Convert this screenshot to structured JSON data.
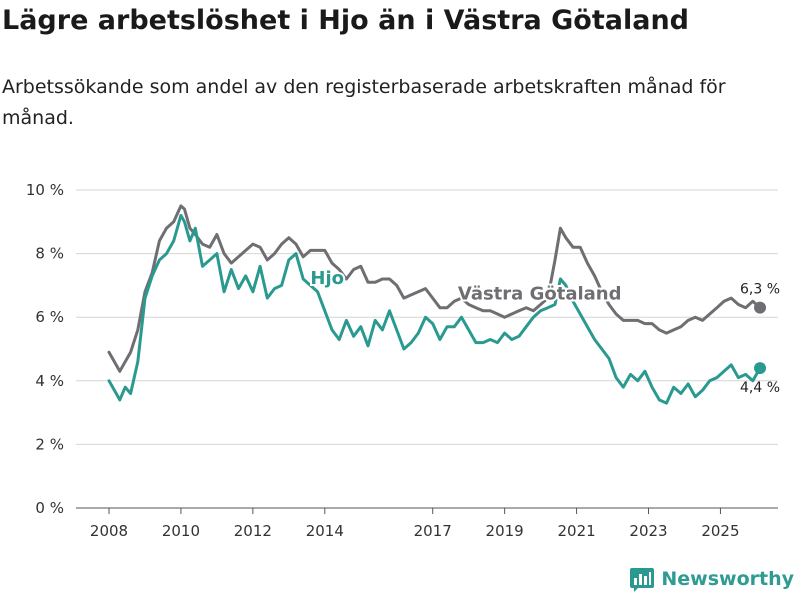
{
  "header": {
    "title": "Lägre arbetslöshet i Hjo än i Västra Götaland",
    "subtitle": "Arbetssökande som andel av den registerbaserade arbetskraften månad för månad."
  },
  "brand": {
    "name": "Newsworthy",
    "color": "#2a9a90"
  },
  "chart_data": {
    "type": "line",
    "title": "Lägre arbetslöshet i Hjo än i Västra Götaland",
    "xlabel": "",
    "ylabel": "",
    "xlim": [
      2008,
      2026.6
    ],
    "ylim": [
      0,
      10
    ],
    "grid": true,
    "x_ticks": [
      2008,
      2010,
      2012,
      2014,
      2017,
      2019,
      2021,
      2023,
      2025
    ],
    "x_tick_labels": [
      "2008",
      "2010",
      "2012",
      "2014",
      "2017",
      "2019",
      "2021",
      "2023",
      "2025"
    ],
    "y_ticks": [
      0,
      2,
      4,
      6,
      8,
      10
    ],
    "y_tick_labels": [
      "0 %",
      "2 %",
      "4 %",
      "6 %",
      "8 %",
      "10 %"
    ],
    "series": [
      {
        "name": "Västra Götaland",
        "label": "Västra Götaland",
        "color": "#6e6e73",
        "end_label": "6,3 %",
        "x": [
          2008.0,
          2008.15,
          2008.3,
          2008.45,
          2008.6,
          2008.8,
          2009.0,
          2009.2,
          2009.4,
          2009.6,
          2009.8,
          2010.0,
          2010.1,
          2010.25,
          2010.4,
          2010.6,
          2010.8,
          2011.0,
          2011.2,
          2011.4,
          2011.6,
          2011.8,
          2012.0,
          2012.2,
          2012.4,
          2012.6,
          2012.8,
          2013.0,
          2013.2,
          2013.4,
          2013.6,
          2013.8,
          2014.0,
          2014.2,
          2014.4,
          2014.6,
          2014.8,
          2015.0,
          2015.2,
          2015.4,
          2015.6,
          2015.8,
          2016.0,
          2016.2,
          2016.4,
          2016.6,
          2016.8,
          2017.0,
          2017.2,
          2017.4,
          2017.6,
          2017.8,
          2018.0,
          2018.2,
          2018.4,
          2018.6,
          2018.8,
          2019.0,
          2019.2,
          2019.4,
          2019.6,
          2019.8,
          2020.0,
          2020.2,
          2020.4,
          2020.55,
          2020.7,
          2020.9,
          2021.1,
          2021.3,
          2021.5,
          2021.7,
          2021.9,
          2022.1,
          2022.3,
          2022.5,
          2022.7,
          2022.9,
          2023.1,
          2023.3,
          2023.5,
          2023.7,
          2023.9,
          2024.1,
          2024.3,
          2024.5,
          2024.7,
          2024.9,
          2025.1,
          2025.3,
          2025.5,
          2025.7,
          2025.9,
          2026.1
        ],
        "values": [
          4.9,
          4.6,
          4.3,
          4.6,
          4.9,
          5.6,
          6.8,
          7.4,
          8.4,
          8.8,
          9.0,
          9.5,
          9.4,
          8.8,
          8.6,
          8.3,
          8.2,
          8.6,
          8.0,
          7.7,
          7.9,
          8.1,
          8.3,
          8.2,
          7.8,
          8.0,
          8.3,
          8.5,
          8.3,
          7.9,
          8.1,
          8.1,
          8.1,
          7.7,
          7.5,
          7.2,
          7.5,
          7.6,
          7.1,
          7.1,
          7.2,
          7.2,
          7.0,
          6.6,
          6.7,
          6.8,
          6.9,
          6.6,
          6.3,
          6.3,
          6.5,
          6.6,
          6.4,
          6.3,
          6.2,
          6.2,
          6.1,
          6.0,
          6.1,
          6.2,
          6.3,
          6.2,
          6.4,
          6.6,
          7.8,
          8.8,
          8.5,
          8.2,
          8.2,
          7.7,
          7.3,
          6.8,
          6.4,
          6.1,
          5.9,
          5.9,
          5.9,
          5.8,
          5.8,
          5.6,
          5.5,
          5.6,
          5.7,
          5.9,
          6.0,
          5.9,
          6.1,
          6.3,
          6.5,
          6.6,
          6.4,
          6.3,
          6.5,
          6.3
        ]
      },
      {
        "name": "Hjo",
        "label": "Hjo",
        "color": "#2a9a90",
        "end_label": "4,4 %",
        "x": [
          2008.0,
          2008.15,
          2008.3,
          2008.45,
          2008.6,
          2008.8,
          2009.0,
          2009.2,
          2009.4,
          2009.6,
          2009.8,
          2010.0,
          2010.1,
          2010.25,
          2010.4,
          2010.6,
          2010.8,
          2011.0,
          2011.2,
          2011.4,
          2011.6,
          2011.8,
          2012.0,
          2012.2,
          2012.4,
          2012.6,
          2012.8,
          2013.0,
          2013.2,
          2013.4,
          2013.6,
          2013.8,
          2014.0,
          2014.2,
          2014.4,
          2014.6,
          2014.8,
          2015.0,
          2015.2,
          2015.4,
          2015.6,
          2015.8,
          2016.0,
          2016.2,
          2016.4,
          2016.6,
          2016.8,
          2017.0,
          2017.2,
          2017.4,
          2017.6,
          2017.8,
          2018.0,
          2018.2,
          2018.4,
          2018.6,
          2018.8,
          2019.0,
          2019.2,
          2019.4,
          2019.6,
          2019.8,
          2020.0,
          2020.2,
          2020.4,
          2020.55,
          2020.7,
          2020.9,
          2021.1,
          2021.3,
          2021.5,
          2021.7,
          2021.9,
          2022.1,
          2022.3,
          2022.5,
          2022.7,
          2022.9,
          2023.1,
          2023.3,
          2023.5,
          2023.7,
          2023.9,
          2024.1,
          2024.3,
          2024.5,
          2024.7,
          2024.9,
          2025.1,
          2025.3,
          2025.5,
          2025.7,
          2025.9,
          2026.1
        ],
        "values": [
          4.0,
          3.7,
          3.4,
          3.8,
          3.6,
          4.6,
          6.6,
          7.3,
          7.8,
          8.0,
          8.4,
          9.2,
          9.0,
          8.4,
          8.8,
          7.6,
          7.8,
          8.0,
          6.8,
          7.5,
          6.9,
          7.3,
          6.8,
          7.6,
          6.6,
          6.9,
          7.0,
          7.8,
          8.0,
          7.2,
          7.0,
          6.8,
          6.2,
          5.6,
          5.3,
          5.9,
          5.4,
          5.7,
          5.1,
          5.9,
          5.6,
          6.2,
          5.6,
          5.0,
          5.2,
          5.5,
          6.0,
          5.8,
          5.3,
          5.7,
          5.7,
          6.0,
          5.6,
          5.2,
          5.2,
          5.3,
          5.2,
          5.5,
          5.3,
          5.4,
          5.7,
          6.0,
          6.2,
          6.3,
          6.4,
          7.2,
          7.0,
          6.5,
          6.1,
          5.7,
          5.3,
          5.0,
          4.7,
          4.1,
          3.8,
          4.2,
          4.0,
          4.3,
          3.8,
          3.4,
          3.3,
          3.8,
          3.6,
          3.9,
          3.5,
          3.7,
          4.0,
          4.1,
          4.3,
          4.5,
          4.1,
          4.2,
          4.0,
          4.4
        ]
      }
    ]
  }
}
